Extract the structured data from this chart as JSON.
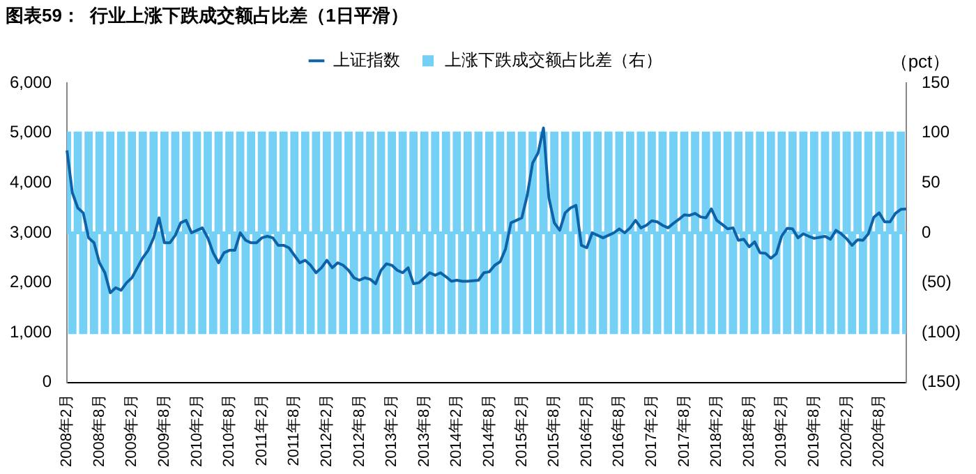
{
  "chart_data": {
    "type": "line",
    "title": "图表59：  行业上涨下跌成交额占比差（1日平滑）",
    "categories": [
      "2008年2月",
      null,
      null,
      null,
      null,
      null,
      "2008年8月",
      null,
      null,
      null,
      null,
      null,
      "2009年2月",
      null,
      null,
      null,
      null,
      null,
      "2009年8月",
      null,
      null,
      null,
      null,
      null,
      "2010年2月",
      null,
      null,
      null,
      null,
      null,
      "2010年8月",
      null,
      null,
      null,
      null,
      null,
      "2011年2月",
      null,
      null,
      null,
      null,
      null,
      "2011年8月",
      null,
      null,
      null,
      null,
      null,
      "2012年2月",
      null,
      null,
      null,
      null,
      null,
      "2012年8月",
      null,
      null,
      null,
      null,
      null,
      "2013年2月",
      null,
      null,
      null,
      null,
      null,
      "2013年8月",
      null,
      null,
      null,
      null,
      null,
      "2014年2月",
      null,
      null,
      null,
      null,
      null,
      "2014年8月",
      null,
      null,
      null,
      null,
      null,
      "2015年2月",
      null,
      null,
      null,
      null,
      null,
      "2015年8月",
      null,
      null,
      null,
      null,
      null,
      "2016年2月",
      null,
      null,
      null,
      null,
      null,
      "2016年8月",
      null,
      null,
      null,
      null,
      null,
      "2017年2月",
      null,
      null,
      null,
      null,
      null,
      "2017年8月",
      null,
      null,
      null,
      null,
      null,
      "2018年2月",
      null,
      null,
      null,
      null,
      null,
      "2018年8月",
      null,
      null,
      null,
      null,
      null,
      "2019年2月",
      null,
      null,
      null,
      null,
      null,
      "2019年8月",
      null,
      null,
      null,
      null,
      null,
      "2020年2月",
      null,
      null,
      null,
      null,
      null,
      "2020年8月",
      null,
      null,
      null,
      null,
      null
    ],
    "series": [
      {
        "name": "上证指数",
        "color": "#0e63a8",
        "values": [
          4650,
          3800,
          3500,
          3400,
          2900,
          2800,
          2400,
          2200,
          1800,
          1900,
          1850,
          2000,
          2100,
          2300,
          2500,
          2650,
          2900,
          3300,
          2800,
          2800,
          2950,
          3200,
          3250,
          3000,
          3050,
          3100,
          2900,
          2600,
          2400,
          2600,
          2650,
          2650,
          3000,
          2850,
          2800,
          2800,
          2900,
          2930,
          2900,
          2750,
          2750,
          2700,
          2550,
          2400,
          2450,
          2350,
          2200,
          2300,
          2450,
          2300,
          2400,
          2350,
          2250,
          2100,
          2050,
          2100,
          2070,
          1980,
          2250,
          2380,
          2350,
          2250,
          2200,
          2300,
          1980,
          2000,
          2100,
          2200,
          2150,
          2200,
          2120,
          2030,
          2050,
          2030,
          2030,
          2040,
          2050,
          2200,
          2220,
          2350,
          2420,
          2680,
          3200,
          3250,
          3300,
          3750,
          4400,
          4600,
          5100,
          3700,
          3200,
          3050,
          3400,
          3500,
          3550,
          2750,
          2700,
          3000,
          2950,
          2900,
          2950,
          3000,
          3080,
          3000,
          3100,
          3250,
          3100,
          3150,
          3240,
          3220,
          3150,
          3100,
          3190,
          3270,
          3360,
          3350,
          3390,
          3320,
          3300,
          3480,
          3250,
          3170,
          3080,
          3100,
          2850,
          2870,
          2720,
          2820,
          2600,
          2590,
          2490,
          2580,
          2940,
          3090,
          3080,
          2900,
          2980,
          2930,
          2890,
          2910,
          2930,
          2870,
          3050,
          2980,
          2880,
          2750,
          2860,
          2850,
          2980,
          3310,
          3400,
          3220,
          3220,
          3390,
          3470,
          3480
        ]
      },
      {
        "name": "上涨下跌成交额占比差（右）",
        "type": "bar",
        "axis": "y2",
        "color": "#75d0f5",
        "values": [
          100,
          -100,
          100,
          -100,
          100,
          -100,
          100,
          -100,
          100,
          -100,
          100,
          -100,
          100,
          -100,
          100,
          -100,
          100,
          -100,
          100,
          -100,
          100,
          -100,
          100,
          -100,
          100,
          -100,
          100,
          -100,
          100,
          -100,
          100,
          -100,
          100,
          -100,
          100,
          -100,
          100,
          -100,
          100,
          -100,
          100,
          -100,
          100,
          -100,
          100,
          -100,
          100,
          -100,
          100,
          -100,
          100,
          -100,
          100,
          -100,
          100,
          -100,
          100,
          -100,
          100,
          -100,
          100,
          -100,
          100,
          -100,
          100,
          -100,
          100,
          -100,
          100,
          -100,
          100,
          -100,
          100,
          -100,
          100,
          -100,
          100,
          -100,
          100,
          -100,
          100,
          -100,
          100,
          -100,
          100,
          -100,
          100,
          -100,
          100,
          -100,
          100,
          -100,
          100,
          -100,
          100,
          -100,
          100,
          -100,
          100,
          -100,
          100,
          -100,
          100,
          -100,
          100,
          -100,
          100,
          -100,
          100,
          -100,
          100,
          -100,
          100,
          -100,
          100,
          -100,
          100,
          -100,
          100,
          -100,
          100,
          -100,
          100,
          -100,
          100,
          -100,
          100,
          -100,
          100,
          -100,
          100,
          -100,
          100,
          -100,
          100,
          -100,
          100,
          -100,
          100,
          -100,
          100,
          -100,
          100,
          -100,
          100,
          -100,
          100,
          -100,
          100,
          -100,
          100,
          -100,
          100,
          -100,
          100,
          -100
        ]
      }
    ],
    "ylim": [
      0,
      6000
    ],
    "yticks": [
      0,
      {
        "value": 1000,
        "label": "1,000"
      },
      {
        "value": 2000,
        "label": "2,000"
      },
      {
        "value": 3000,
        "label": "3,000"
      },
      {
        "value": 4000,
        "label": "4,000"
      },
      {
        "value": 5000,
        "label": "5,000"
      },
      {
        "value": 6000,
        "label": "6,000"
      }
    ],
    "y2label": "（pct）",
    "y2lim": [
      -150,
      150
    ],
    "y2ticks": [
      {
        "value": -150,
        "label": "(150)"
      },
      {
        "value": -100,
        "label": "(100)"
      },
      {
        "value": -50,
        "label": "(50)"
      },
      0,
      50,
      100,
      150
    ],
    "grid": false,
    "legend": "top"
  }
}
